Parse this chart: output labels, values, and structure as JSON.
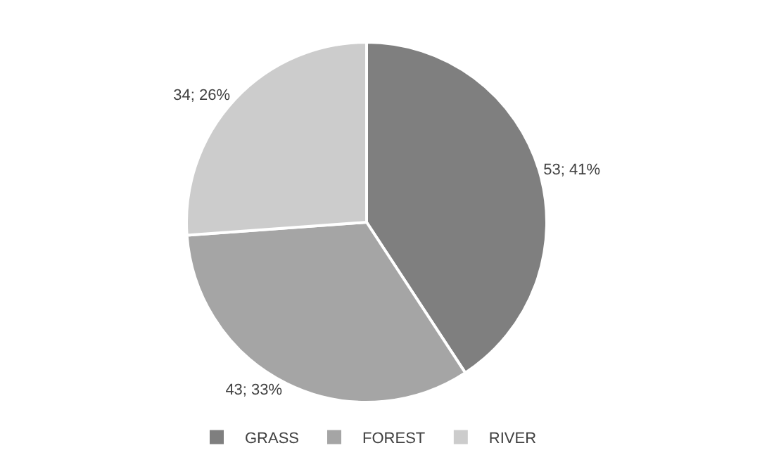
{
  "chart_data": {
    "type": "pie",
    "categories": [
      "GRASS",
      "FOREST",
      "RIVER"
    ],
    "values": [
      53,
      43,
      34
    ],
    "colors": [
      "#7f7f7f",
      "#a5a5a5",
      "#cccccc"
    ],
    "value_labels": [
      "53; 41%",
      "43; 33%",
      "34; 26%"
    ],
    "legend": "bottom"
  }
}
